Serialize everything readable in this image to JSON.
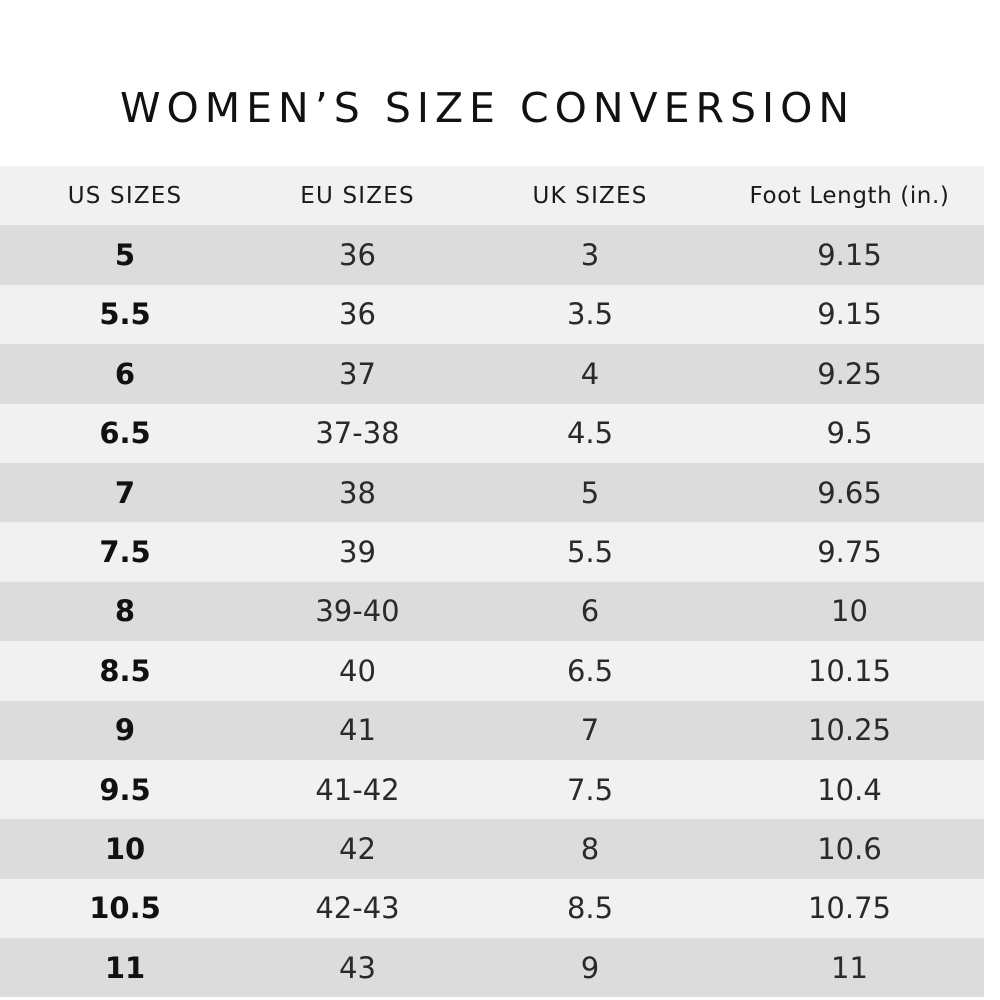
{
  "title": "WOMEN’S SIZE CONVERSION",
  "table": {
    "headers": [
      "US SIZES",
      "EU SIZES",
      "UK SIZES",
      "Foot Length (in.)"
    ],
    "rows": [
      [
        "5",
        "36",
        "3",
        "9.15"
      ],
      [
        "5.5",
        "36",
        "3.5",
        "9.15"
      ],
      [
        "6",
        "37",
        "4",
        "9.25"
      ],
      [
        "6.5",
        "37-38",
        "4.5",
        "9.5"
      ],
      [
        "7",
        "38",
        "5",
        "9.65"
      ],
      [
        "7.5",
        "39",
        "5.5",
        "9.75"
      ],
      [
        "8",
        "39-40",
        "6",
        "10"
      ],
      [
        "8.5",
        "40",
        "6.5",
        "10.15"
      ],
      [
        "9",
        "41",
        "7",
        "10.25"
      ],
      [
        "9.5",
        "41-42",
        "7.5",
        "10.4"
      ],
      [
        "10",
        "42",
        "8",
        "10.6"
      ],
      [
        "10.5",
        "42-43",
        "8.5",
        "10.75"
      ],
      [
        "11",
        "43",
        "9",
        "11"
      ]
    ]
  },
  "colors": {
    "light_row": "#f1f1f1",
    "dark_row": "#dcdcdd",
    "text": "#1a1a1a"
  }
}
